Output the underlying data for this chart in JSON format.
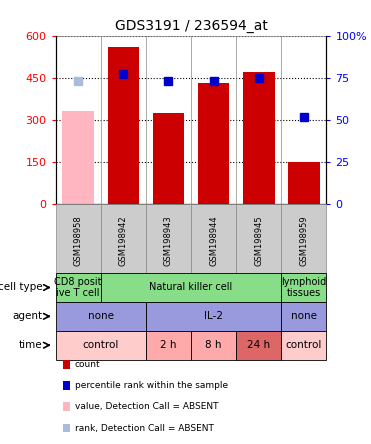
{
  "title": "GDS3191 / 236594_at",
  "samples": [
    "GSM198958",
    "GSM198942",
    "GSM198943",
    "GSM198944",
    "GSM198945",
    "GSM198959"
  ],
  "counts": [
    330,
    560,
    325,
    430,
    470,
    150
  ],
  "percentiles": [
    73,
    77,
    73,
    73,
    75,
    52
  ],
  "absent_value": [
    true,
    false,
    false,
    false,
    false,
    false
  ],
  "absent_rank": [
    true,
    false,
    false,
    false,
    false,
    false
  ],
  "ylim_left": [
    0,
    600
  ],
  "ylim_right": [
    0,
    100
  ],
  "yticks_left": [
    0,
    150,
    300,
    450,
    600
  ],
  "yticks_right": [
    0,
    25,
    50,
    75,
    100
  ],
  "color_bar_present": "#CC0000",
  "color_bar_absent": "#FFB6C1",
  "color_rank_present": "#0000CC",
  "color_rank_absent": "#AABBDD",
  "cell_type_data": [
    {
      "label": "CD8 posit\nive T cell",
      "start": 0,
      "end": 1,
      "color": "#88DD88"
    },
    {
      "label": "Natural killer cell",
      "start": 1,
      "end": 5,
      "color": "#88DD88"
    },
    {
      "label": "lymphoid\ntissues",
      "start": 5,
      "end": 6,
      "color": "#88DD88"
    }
  ],
  "agent_data": [
    {
      "label": "none",
      "start": 0,
      "end": 2,
      "color": "#9999DD"
    },
    {
      "label": "IL-2",
      "start": 2,
      "end": 5,
      "color": "#9999DD"
    },
    {
      "label": "none",
      "start": 5,
      "end": 6,
      "color": "#9999DD"
    }
  ],
  "time_data": [
    {
      "label": "control",
      "start": 0,
      "end": 2,
      "color": "#FFCCCC"
    },
    {
      "label": "2 h",
      "start": 2,
      "end": 3,
      "color": "#FFAAAA"
    },
    {
      "label": "8 h",
      "start": 3,
      "end": 4,
      "color": "#FFAAAA"
    },
    {
      "label": "24 h",
      "start": 4,
      "end": 5,
      "color": "#DD6666"
    },
    {
      "label": "control",
      "start": 5,
      "end": 6,
      "color": "#FFCCCC"
    }
  ],
  "row_labels": [
    "cell type",
    "agent",
    "time"
  ],
  "legend": [
    {
      "color": "#CC0000",
      "label": "count"
    },
    {
      "color": "#0000CC",
      "label": "percentile rank within the sample"
    },
    {
      "color": "#FFB6C1",
      "label": "value, Detection Call = ABSENT"
    },
    {
      "color": "#AABBDD",
      "label": "rank, Detection Call = ABSENT"
    }
  ],
  "tick_bg_color": "#CCCCCC",
  "plot_bg": "#FFFFFF",
  "fig_width": 3.71,
  "fig_height": 4.44,
  "dpi": 100
}
